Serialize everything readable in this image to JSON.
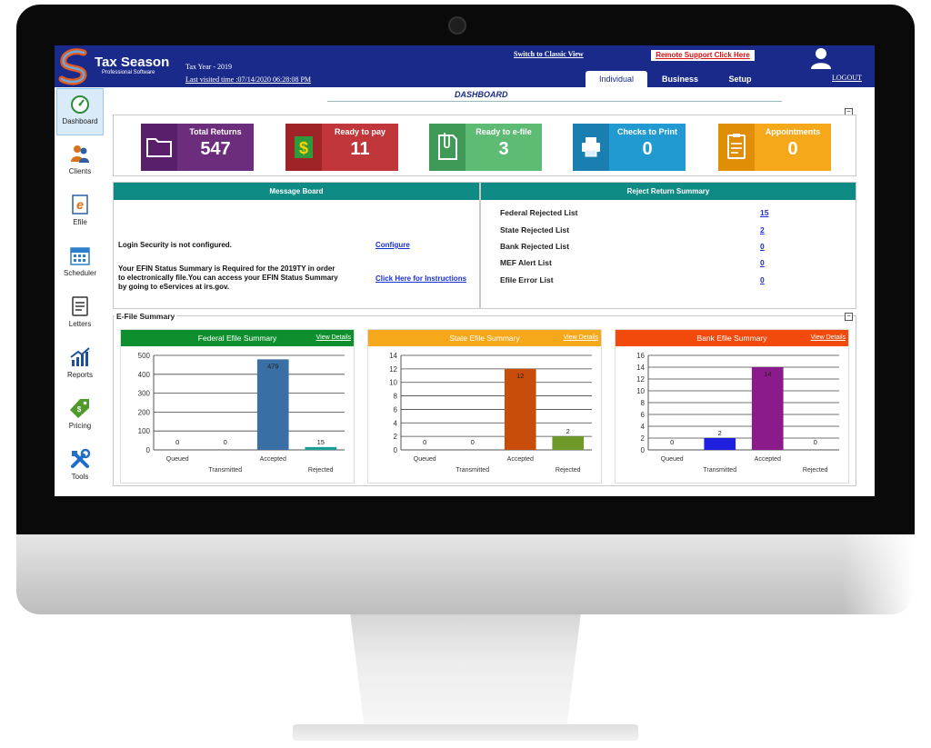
{
  "header": {
    "brand_title": "Tax Season",
    "brand_sub": "Professional Software",
    "tax_year": "Tax Year - 2019",
    "last_visited": "Last visited time :07/14/2020 06:28:08 PM",
    "classic_view": "Switch to Classic View",
    "remote_support": "Remote Support Click Here",
    "logout": "LOGOUT",
    "tabs": [
      "Individual",
      "Business",
      "Setup"
    ]
  },
  "page_title": "DASHBOARD",
  "sidebar": {
    "items": [
      {
        "label": "Dashboard",
        "icon": "speedometer-icon"
      },
      {
        "label": "Clients",
        "icon": "clients-icon"
      },
      {
        "label": "Efile",
        "icon": "efile-icon"
      },
      {
        "label": "Scheduler",
        "icon": "calendar-icon"
      },
      {
        "label": "Letters",
        "icon": "letters-icon"
      },
      {
        "label": "Reports",
        "icon": "reports-icon"
      },
      {
        "label": "Pricing",
        "icon": "price-tag-icon"
      },
      {
        "label": "Tools",
        "icon": "tools-icon"
      }
    ]
  },
  "cards": [
    {
      "label": "Total Returns",
      "value": "547",
      "color": "#6b2d7c",
      "icon_color": "#5a1f6a"
    },
    {
      "label": "Ready to pay",
      "value": "11",
      "color": "#c0363a",
      "icon_color": "#9e2428"
    },
    {
      "label": "Ready to e-file",
      "value": "3",
      "color": "#5dbb74",
      "icon_color": "#3f9a57"
    },
    {
      "label": "Checks to Print",
      "value": "0",
      "color": "#2199d1",
      "icon_color": "#1a7fb0"
    },
    {
      "label": "Appointments",
      "value": "0",
      "color": "#f5a81a",
      "icon_color": "#e08e05"
    }
  ],
  "message_board": {
    "title": "Message Board",
    "login_msg": "Login Security is not configured.",
    "configure": "Configure",
    "efin_line1": "Your EFIN Status Summary is Required for the 2019TY in order",
    "efin_line2": "to electronically file.You can access your EFIN Status Summary",
    "efin_line3": "by going to eServices at irs.gov.",
    "instructions": "Click Here for Instructions"
  },
  "reject_summary": {
    "title": "Reject Return Summary",
    "rows": [
      {
        "label": "Federal Rejected List",
        "value": "15"
      },
      {
        "label": "State Rejected List",
        "value": "2"
      },
      {
        "label": "Bank Rejected List",
        "value": "0"
      },
      {
        "label": "MEF Alert List",
        "value": "0"
      },
      {
        "label": "Efile Error List",
        "value": "0"
      }
    ]
  },
  "efile_summary_title": "E-File Summary",
  "view_details": "View Details",
  "chart_data": [
    {
      "type": "bar",
      "title": "Federal Efile Summary",
      "header_color": "#0e8f2e",
      "categories": [
        "Queued",
        "Transmitted",
        "Accepted",
        "Rejected"
      ],
      "values": [
        0,
        0,
        479,
        15
      ],
      "colors": [
        "#3a6fa5",
        "#3a6fa5",
        "#3a6fa5",
        "#1b9e9a"
      ],
      "ylim": [
        0,
        500
      ],
      "yticks": [
        0,
        100,
        200,
        300,
        400,
        500
      ]
    },
    {
      "type": "bar",
      "title": "State Efile Summary",
      "header_color": "#f5a81a",
      "categories": [
        "Queued",
        "Transmitted",
        "Accepted",
        "Rejected"
      ],
      "values": [
        0,
        0,
        12,
        2
      ],
      "colors": [
        "#c84d0a",
        "#c84d0a",
        "#c84d0a",
        "#6e9a2a"
      ],
      "ylim": [
        0,
        14
      ],
      "yticks": [
        0,
        2,
        4,
        6,
        8,
        10,
        12,
        14
      ]
    },
    {
      "type": "bar",
      "title": "Bank Efile Summary",
      "header_color": "#f24a0d",
      "categories": [
        "Queued",
        "Transmitted",
        "Accepted",
        "Rejected"
      ],
      "values": [
        0,
        2,
        14,
        0
      ],
      "colors": [
        "#1f1fe0",
        "#1f1fe0",
        "#8b1a8b",
        "#8b1a8b"
      ],
      "ylim": [
        0,
        16
      ],
      "yticks": [
        0,
        2,
        4,
        6,
        8,
        10,
        12,
        14,
        16
      ]
    }
  ]
}
